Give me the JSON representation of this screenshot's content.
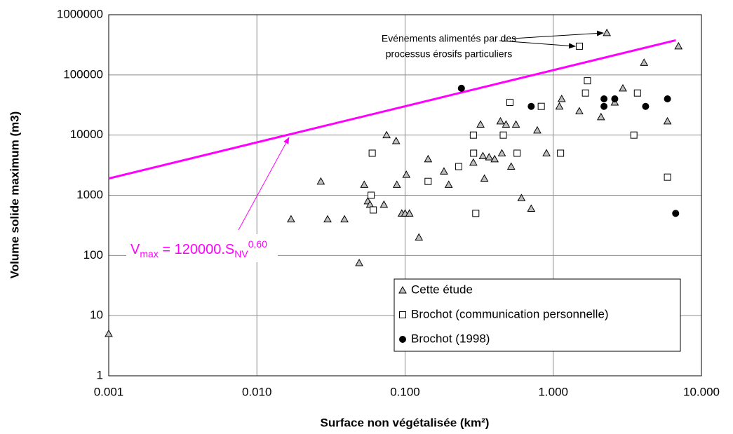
{
  "chart_data": {
    "type": "scatter",
    "x_label": "Surface non végétalisée (km²)",
    "y_label": "Volume solide maximum (m3)",
    "xscale": "log",
    "yscale": "log",
    "xlim": [
      0.001,
      10
    ],
    "ylim": [
      1,
      1000000
    ],
    "xticks": [
      {
        "value": 0.001,
        "label": "0.001"
      },
      {
        "value": 0.01,
        "label": "0.010"
      },
      {
        "value": 0.1,
        "label": "0.100"
      },
      {
        "value": 1,
        "label": "1.000"
      },
      {
        "value": 10,
        "label": "10.000"
      }
    ],
    "yticks": [
      1,
      10,
      100,
      1000,
      10000,
      100000,
      1000000
    ],
    "grid": true,
    "legend": "lower right",
    "series": [
      {
        "name": "Cette étude",
        "marker": "triangle",
        "color": "#bfbfbf",
        "x": [
          0.001,
          0.017,
          0.027,
          0.03,
          0.039,
          0.049,
          0.053,
          0.056,
          0.058,
          0.072,
          0.075,
          0.087,
          0.088,
          0.095,
          0.1,
          0.102,
          0.107,
          0.124,
          0.143,
          0.183,
          0.197,
          0.289,
          0.323,
          0.335,
          0.343,
          0.369,
          0.402,
          0.44,
          0.45,
          0.48,
          0.52,
          0.56,
          0.61,
          0.71,
          0.78,
          0.9,
          1.1,
          1.14,
          1.5,
          2.1,
          2.3,
          2.6,
          2.95,
          4.1,
          5.9,
          7.0
        ],
        "values": [
          5,
          400,
          1700,
          400,
          400,
          75,
          1500,
          800,
          700,
          700,
          10000,
          8000,
          1500,
          500,
          500,
          2200,
          500,
          200,
          4000,
          2500,
          1500,
          3500,
          15000,
          4500,
          1900,
          4300,
          4000,
          17000,
          5000,
          15000,
          3000,
          15000,
          900,
          600,
          12000,
          5000,
          30000,
          40000,
          25000,
          20000,
          500000,
          35000,
          60000,
          160000,
          17000,
          300000
        ]
      },
      {
        "name": "Brochot (communication personnelle)",
        "marker": "square",
        "color": "#ffffff",
        "x": [
          0.06,
          0.059,
          0.061,
          0.143,
          0.23,
          0.289,
          0.29,
          0.3,
          0.46,
          0.51,
          0.57,
          0.83,
          1.12,
          1.5,
          1.65,
          1.7,
          3.5,
          3.7,
          5.9
        ],
        "values": [
          5000,
          1000,
          570,
          1700,
          3000,
          10000,
          5000,
          500,
          10000,
          35000,
          5000,
          30000,
          5000,
          300000,
          50000,
          80000,
          10000,
          50000,
          2000
        ]
      },
      {
        "name": "Brochot (1998)",
        "marker": "circle",
        "color": "#000000",
        "x": [
          0.24,
          0.71,
          2.2,
          2.2,
          2.6,
          4.2,
          5.9,
          6.7
        ],
        "values": [
          60000,
          30000,
          40000,
          30000,
          40000,
          30000,
          40000,
          500
        ]
      }
    ],
    "fit_line": {
      "x": [
        0.001,
        6.7
      ],
      "values": [
        1900,
        376000
      ],
      "color": "#ff00ff"
    },
    "formula": {
      "parts": [
        "V",
        "max",
        " = 120000.S",
        "NV",
        "0,60"
      ]
    },
    "annotation": [
      "Evénements alimentés par des",
      "processus érosifs particuliers"
    ]
  }
}
